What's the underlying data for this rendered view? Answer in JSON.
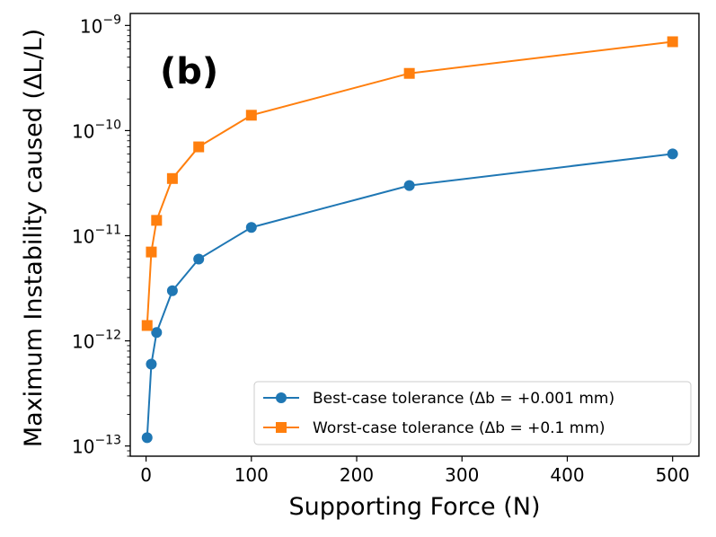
{
  "chart_data": {
    "type": "line",
    "title": "",
    "panel_label": "(b)",
    "xlabel": "Supporting Force (N)",
    "ylabel": "Maximum Instability caused (ΔL/L)",
    "xlim": [
      -15,
      525
    ],
    "ylim": [
      8e-14,
      1.3e-09
    ],
    "yscale": "log",
    "grid": false,
    "legend_position": "bottom-right",
    "x_ticks": [
      {
        "value": 0,
        "label": "0"
      },
      {
        "value": 100,
        "label": "100"
      },
      {
        "value": 200,
        "label": "200"
      },
      {
        "value": 300,
        "label": "300"
      },
      {
        "value": 400,
        "label": "400"
      },
      {
        "value": 500,
        "label": "500"
      }
    ],
    "y_ticks": [
      {
        "value": 1e-13,
        "base": "10",
        "exp": "−13"
      },
      {
        "value": 1e-12,
        "base": "10",
        "exp": "−12"
      },
      {
        "value": 1e-11,
        "base": "10",
        "exp": "−11"
      },
      {
        "value": 1e-10,
        "base": "10",
        "exp": "−10"
      },
      {
        "value": 1e-09,
        "base": "10",
        "exp": "−9"
      }
    ],
    "x": [
      1,
      5,
      10,
      25,
      50,
      100,
      250,
      500
    ],
    "series": [
      {
        "name": "Best-case tolerance (Δb = +0.001 mm)",
        "color": "#1f77b4",
        "marker": "circle",
        "values": [
          1.2e-13,
          6e-13,
          1.2e-12,
          3e-12,
          6e-12,
          1.2e-11,
          3e-11,
          6e-11
        ]
      },
      {
        "name": "Worst-case tolerance (Δb = +0.1 mm)",
        "color": "#ff7f0e",
        "marker": "square",
        "values": [
          1.4e-12,
          7e-12,
          1.4e-11,
          3.5e-11,
          7e-11,
          1.4e-10,
          3.5e-10,
          7e-10
        ]
      }
    ]
  }
}
